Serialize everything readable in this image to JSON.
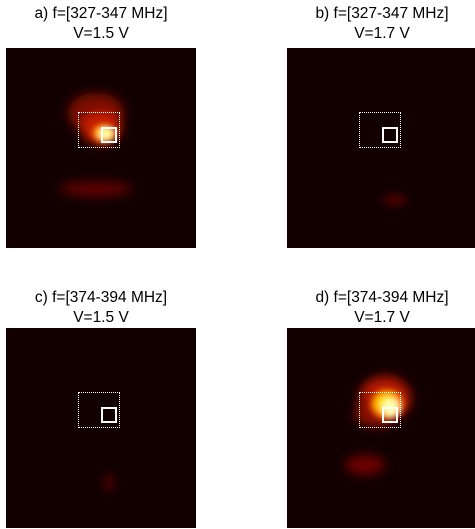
{
  "panels": [
    {
      "id": "a",
      "title_line1": "a) f=[327-347 MHz]",
      "title_line2": "V=1.5 V",
      "intensity": "high",
      "blobs": [
        "upper-left-lobe",
        "center-hotspot",
        "lower-streak"
      ]
    },
    {
      "id": "b",
      "title_line1": "b) f=[327-347 MHz]",
      "title_line2": "V=1.7 V",
      "intensity": "low",
      "blobs": [
        "faint-lower-right-spot"
      ]
    },
    {
      "id": "c",
      "title_line1": "c) f=[374-394 MHz]",
      "title_line2": "V=1.5 V",
      "intensity": "low",
      "blobs": [
        "faint-lower-spot"
      ]
    },
    {
      "id": "d",
      "title_line1": "d) f=[374-394 MHz]",
      "title_line2": "V=1.7 V",
      "intensity": "high",
      "blobs": [
        "right-lobe",
        "center-hotspot",
        "lower-left-streak"
      ]
    }
  ],
  "colors": {
    "background": "#120000",
    "hot": "#ffff90",
    "warm": "#ff7a00",
    "cool": "#8a0a00",
    "marker": "#ffffff"
  }
}
